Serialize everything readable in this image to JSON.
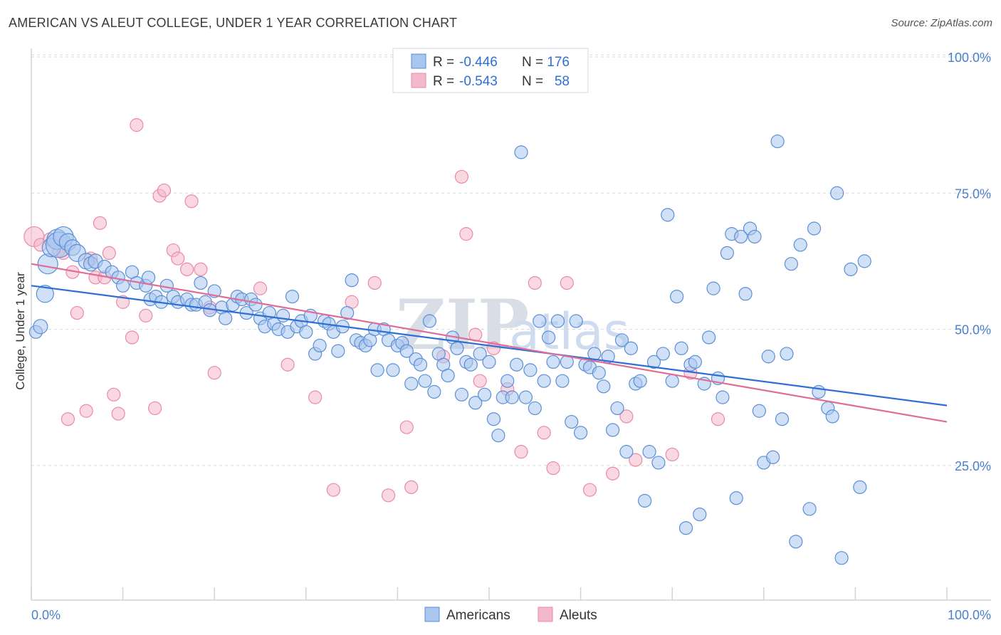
{
  "title": "AMERICAN VS ALEUT COLLEGE, UNDER 1 YEAR CORRELATION CHART",
  "source": "Source: ZipAtlas.com",
  "colors": {
    "blue_fill": "#a9c6ee",
    "blue_stroke": "#5b8fd6",
    "blue_line": "#2e6fd6",
    "pink_fill": "#f4b8cb",
    "pink_stroke": "#e98aa9",
    "pink_line": "#e06d97",
    "grid": "#d5d9e0",
    "axis_label": "#4a7fd0"
  },
  "legend": {
    "rows": [
      {
        "r_label": "R =",
        "r_value": "-0.446",
        "n_label": "N =",
        "n_value": "176"
      },
      {
        "r_label": "R =",
        "r_value": "-0.543",
        "n_label": "N =",
        "n_value": "58"
      }
    ]
  },
  "bottom_legend": [
    "Americans",
    "Aleuts"
  ],
  "watermark": {
    "zip": "ZIP",
    "atlas": "atlas"
  },
  "chart_data": {
    "type": "scatter",
    "xlabel": "",
    "ylabel": "College, Under 1 year",
    "xlim": [
      0,
      100
    ],
    "ylim": [
      0,
      100
    ],
    "x_tick_labels": [
      "0.0%",
      "100.0%"
    ],
    "y_ticks": [
      {
        "value": 100,
        "label": "100.0%"
      },
      {
        "value": 75,
        "label": "75.0%"
      },
      {
        "value": 50,
        "label": "50.0%"
      },
      {
        "value": 25,
        "label": "25.0%"
      }
    ],
    "grid": true,
    "legend_position": "top-center",
    "series": [
      {
        "name": "Americans",
        "trend": {
          "x0": 0,
          "y0": 58,
          "x1": 100,
          "y1": 36
        },
        "points": [
          [
            0.5,
            49.5,
            9
          ],
          [
            1.0,
            50.5,
            10
          ],
          [
            1.5,
            56.5,
            12
          ],
          [
            1.8,
            62,
            14
          ],
          [
            2.2,
            65,
            13
          ],
          [
            2.8,
            66.5,
            14
          ],
          [
            3.0,
            65.5,
            18
          ],
          [
            3.5,
            67,
            14
          ],
          [
            4.0,
            66,
            12
          ],
          [
            4.5,
            65,
            11
          ],
          [
            5.0,
            64,
            12
          ],
          [
            6.0,
            62.5,
            11
          ],
          [
            6.5,
            62,
            10
          ],
          [
            7.0,
            62.5,
            10
          ],
          [
            8.0,
            61.5,
            9
          ],
          [
            8.8,
            60.5,
            9
          ],
          [
            9.5,
            59.5,
            9
          ],
          [
            10.0,
            58,
            9
          ],
          [
            11.0,
            60.5,
            9
          ],
          [
            11.5,
            58.5,
            9
          ],
          [
            12.5,
            58,
            9
          ],
          [
            12.8,
            59.5,
            9
          ],
          [
            13.0,
            55.5,
            9
          ],
          [
            13.6,
            56,
            9
          ],
          [
            14.2,
            55,
            9
          ],
          [
            14.8,
            58,
            9
          ],
          [
            15.5,
            56,
            9
          ],
          [
            16.0,
            55,
            9
          ],
          [
            17.0,
            55.5,
            9
          ],
          [
            17.5,
            54.5,
            9
          ],
          [
            18.0,
            54.5,
            9
          ],
          [
            18.5,
            58.5,
            9
          ],
          [
            19.0,
            55,
            9
          ],
          [
            19.5,
            53.5,
            9
          ],
          [
            20.0,
            57,
            9
          ],
          [
            20.8,
            54,
            9
          ],
          [
            21.2,
            52,
            9
          ],
          [
            22.0,
            54.5,
            9
          ],
          [
            22.5,
            56,
            9
          ],
          [
            23.0,
            55.5,
            9
          ],
          [
            23.5,
            53,
            9
          ],
          [
            24.0,
            55.5,
            9
          ],
          [
            24.5,
            54.5,
            9
          ],
          [
            25.0,
            52,
            9
          ],
          [
            25.5,
            50.5,
            9
          ],
          [
            26.0,
            53,
            9
          ],
          [
            26.5,
            51,
            9
          ],
          [
            27.0,
            50,
            9
          ],
          [
            27.5,
            52.5,
            9
          ],
          [
            28.0,
            49.5,
            9
          ],
          [
            28.5,
            56,
            9
          ],
          [
            29.0,
            50.5,
            9
          ],
          [
            29.5,
            51.5,
            9
          ],
          [
            30.0,
            49.5,
            9
          ],
          [
            30.5,
            52.5,
            9
          ],
          [
            31.0,
            45.5,
            9
          ],
          [
            31.5,
            47,
            9
          ],
          [
            32.0,
            51.5,
            9
          ],
          [
            32.5,
            51,
            9
          ],
          [
            33.0,
            49.5,
            9
          ],
          [
            33.5,
            46,
            9
          ],
          [
            34.0,
            50.5,
            9
          ],
          [
            34.5,
            53,
            9
          ],
          [
            35.0,
            59,
            9
          ],
          [
            35.5,
            48,
            9
          ],
          [
            36.0,
            47.5,
            9
          ],
          [
            36.5,
            47,
            9
          ],
          [
            37.0,
            48,
            9
          ],
          [
            37.5,
            50,
            9
          ],
          [
            37.8,
            42.5,
            9
          ],
          [
            38.5,
            50,
            9
          ],
          [
            39.0,
            48,
            9
          ],
          [
            39.5,
            42.5,
            9
          ],
          [
            40.0,
            47,
            9
          ],
          [
            40.5,
            47.5,
            9
          ],
          [
            41.0,
            46,
            9
          ],
          [
            41.5,
            40,
            9
          ],
          [
            42.0,
            44.5,
            9
          ],
          [
            42.5,
            43.5,
            9
          ],
          [
            43.0,
            40.5,
            9
          ],
          [
            43.5,
            51.5,
            9
          ],
          [
            44.0,
            38.5,
            9
          ],
          [
            44.5,
            45.5,
            9
          ],
          [
            45.0,
            43.5,
            9
          ],
          [
            45.5,
            41.5,
            9
          ],
          [
            46.0,
            48.5,
            9
          ],
          [
            46.5,
            46.5,
            9
          ],
          [
            47.0,
            38,
            9
          ],
          [
            47.5,
            44,
            9
          ],
          [
            48.0,
            43.5,
            9
          ],
          [
            48.5,
            36.5,
            9
          ],
          [
            49.0,
            45.5,
            9
          ],
          [
            49.5,
            38,
            9
          ],
          [
            50.0,
            44,
            9
          ],
          [
            50.5,
            33.5,
            9
          ],
          [
            51.0,
            30.5,
            9
          ],
          [
            51.5,
            37.5,
            9
          ],
          [
            52.0,
            40.5,
            9
          ],
          [
            52.5,
            37.5,
            9
          ],
          [
            53.0,
            43.5,
            9
          ],
          [
            53.5,
            82.5,
            9
          ],
          [
            54.0,
            37.5,
            9
          ],
          [
            54.5,
            42.5,
            9
          ],
          [
            55.0,
            35.5,
            9
          ],
          [
            55.5,
            51.5,
            9
          ],
          [
            56.0,
            40.5,
            9
          ],
          [
            56.5,
            48.5,
            9
          ],
          [
            57.0,
            44,
            9
          ],
          [
            57.5,
            51.5,
            9
          ],
          [
            58.0,
            40.5,
            9
          ],
          [
            58.5,
            44,
            9
          ],
          [
            59.0,
            33,
            9
          ],
          [
            59.5,
            51.5,
            9
          ],
          [
            60.0,
            31,
            9
          ],
          [
            60.5,
            43.5,
            9
          ],
          [
            61.0,
            43,
            9
          ],
          [
            61.5,
            45.5,
            9
          ],
          [
            62.0,
            42,
            9
          ],
          [
            62.5,
            39.5,
            9
          ],
          [
            63.0,
            45,
            9
          ],
          [
            63.5,
            31.5,
            9
          ],
          [
            64.0,
            35.5,
            9
          ],
          [
            64.5,
            48,
            9
          ],
          [
            65.0,
            27.5,
            9
          ],
          [
            65.5,
            46.5,
            9
          ],
          [
            66.0,
            40,
            9
          ],
          [
            66.5,
            40.5,
            9
          ],
          [
            67.0,
            18.5,
            9
          ],
          [
            67.5,
            27.5,
            9
          ],
          [
            68.0,
            44,
            9
          ],
          [
            68.5,
            25.5,
            9
          ],
          [
            69.0,
            45.5,
            9
          ],
          [
            69.5,
            71,
            9
          ],
          [
            70.0,
            40.5,
            9
          ],
          [
            70.5,
            56,
            9
          ],
          [
            71.0,
            46.5,
            9
          ],
          [
            71.5,
            13.5,
            9
          ],
          [
            72.0,
            43.5,
            9
          ],
          [
            72.5,
            44,
            9
          ],
          [
            73.0,
            16,
            9
          ],
          [
            73.5,
            40,
            9
          ],
          [
            74.0,
            48.5,
            9
          ],
          [
            74.5,
            57.5,
            9
          ],
          [
            75.0,
            41,
            9
          ],
          [
            75.5,
            37.5,
            9
          ],
          [
            76.0,
            64,
            9
          ],
          [
            76.5,
            67.5,
            9
          ],
          [
            77.0,
            19,
            9
          ],
          [
            77.5,
            67,
            9
          ],
          [
            78.0,
            56.5,
            9
          ],
          [
            78.5,
            68.5,
            9
          ],
          [
            79.0,
            67,
            9
          ],
          [
            79.5,
            35,
            9
          ],
          [
            80.0,
            25.5,
            9
          ],
          [
            80.5,
            45,
            9
          ],
          [
            81.0,
            26.5,
            9
          ],
          [
            81.5,
            84.5,
            9
          ],
          [
            82.0,
            33.5,
            9
          ],
          [
            82.5,
            45.5,
            9
          ],
          [
            83.0,
            62,
            9
          ],
          [
            83.5,
            11,
            9
          ],
          [
            84.0,
            65.5,
            9
          ],
          [
            85.0,
            17,
            9
          ],
          [
            85.5,
            68.5,
            9
          ],
          [
            86.0,
            38.5,
            9
          ],
          [
            87.0,
            35.5,
            9
          ],
          [
            87.5,
            34,
            9
          ],
          [
            88.0,
            75,
            9
          ],
          [
            88.5,
            8,
            9
          ],
          [
            89.5,
            61,
            9
          ],
          [
            90.5,
            21,
            9
          ],
          [
            91.0,
            62.5,
            9
          ]
        ]
      },
      {
        "name": "Aleuts",
        "trend": {
          "x0": 0,
          "y0": 62,
          "x1": 100,
          "y1": 33
        },
        "points": [
          [
            0.3,
            67,
            14
          ],
          [
            1.0,
            65.5,
            9
          ],
          [
            2.0,
            66.5,
            9
          ],
          [
            3.0,
            64.5,
            9
          ],
          [
            3.5,
            64,
            9
          ],
          [
            4.0,
            33.5,
            9
          ],
          [
            4.5,
            60.5,
            9
          ],
          [
            5.0,
            53,
            9
          ],
          [
            6.0,
            35,
            9
          ],
          [
            6.5,
            63,
            9
          ],
          [
            7.0,
            59.5,
            9
          ],
          [
            7.5,
            69.5,
            9
          ],
          [
            8.0,
            59.5,
            9
          ],
          [
            8.5,
            64,
            9
          ],
          [
            9.0,
            38,
            9
          ],
          [
            9.5,
            34.5,
            9
          ],
          [
            10.0,
            55,
            9
          ],
          [
            11.0,
            48.5,
            9
          ],
          [
            11.5,
            87.5,
            9
          ],
          [
            12.5,
            52.5,
            9
          ],
          [
            13.5,
            35.5,
            9
          ],
          [
            14.0,
            74.5,
            9
          ],
          [
            14.5,
            75.5,
            9
          ],
          [
            15.5,
            64.5,
            9
          ],
          [
            16.0,
            63,
            9
          ],
          [
            17.0,
            61,
            9
          ],
          [
            17.5,
            73.5,
            9
          ],
          [
            18.5,
            61,
            9
          ],
          [
            19.5,
            54,
            9
          ],
          [
            20.0,
            42,
            9
          ],
          [
            25.0,
            57.5,
            9
          ],
          [
            28.0,
            43.5,
            9
          ],
          [
            31.0,
            37.5,
            9
          ],
          [
            33.0,
            20.5,
            9
          ],
          [
            35.0,
            55,
            9
          ],
          [
            37.5,
            58.5,
            9
          ],
          [
            39.0,
            19.5,
            9
          ],
          [
            41.0,
            32,
            9
          ],
          [
            41.5,
            21,
            9
          ],
          [
            45.0,
            45,
            9
          ],
          [
            47.0,
            78,
            9
          ],
          [
            47.5,
            67.5,
            9
          ],
          [
            48.5,
            49,
            9
          ],
          [
            49.0,
            40.5,
            9
          ],
          [
            50.5,
            46.5,
            9
          ],
          [
            52.0,
            39,
            9
          ],
          [
            53.5,
            27.5,
            9
          ],
          [
            55.0,
            58.5,
            9
          ],
          [
            56.0,
            31,
            9
          ],
          [
            57.0,
            24.5,
            9
          ],
          [
            58.5,
            58.5,
            9
          ],
          [
            61.0,
            20.5,
            9
          ],
          [
            63.5,
            23.5,
            9
          ],
          [
            65.0,
            34,
            9
          ],
          [
            66.0,
            26,
            9
          ],
          [
            70.0,
            27,
            9
          ],
          [
            72.0,
            42,
            9
          ],
          [
            75.0,
            33.5,
            9
          ]
        ]
      }
    ]
  }
}
